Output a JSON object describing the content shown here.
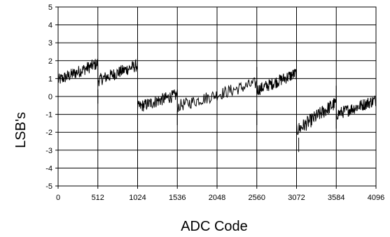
{
  "chart_data": {
    "type": "line",
    "title": "",
    "xlabel": "ADC Code",
    "ylabel": "LSB's",
    "xlim": [
      0,
      4096
    ],
    "ylim": [
      -5,
      5
    ],
    "grid": true,
    "legend": "none",
    "x_ticks": [
      0,
      512,
      1024,
      1536,
      2048,
      2560,
      3072,
      3584,
      4096
    ],
    "x_tick_labels": [
      "0",
      "512",
      "1024",
      "1536",
      "2048",
      "2560",
      "3072",
      "3584",
      "4096"
    ],
    "y_ticks": [
      5,
      4,
      3,
      2,
      1,
      0,
      -1,
      -2,
      -3,
      -4,
      -5
    ],
    "y_tick_labels": [
      "5",
      "4",
      "3",
      "2",
      "1",
      "0",
      "-1",
      "-2",
      "-3",
      "-4",
      "-5"
    ],
    "series": [
      {
        "color": "#000000",
        "segments": [
          {
            "x_start": 0,
            "x_end": 512,
            "y_start": 0.9,
            "y_end": 1.85,
            "noise": 0.35
          },
          {
            "x_start": 512,
            "x_end": 1024,
            "y_start": 0.9,
            "y_end": 1.75,
            "noise": 0.35
          },
          {
            "x_start": 1024,
            "x_end": 1536,
            "y_start": -0.6,
            "y_end": 0.1,
            "noise": 0.35
          },
          {
            "x_start": 1536,
            "x_end": 2560,
            "y_start": -0.55,
            "y_end": 0.75,
            "noise": 0.35
          },
          {
            "x_start": 2560,
            "x_end": 3072,
            "y_start": 0.35,
            "y_end": 1.3,
            "noise": 0.35
          },
          {
            "x_start": 3072,
            "x_end": 3584,
            "y_start": -1.9,
            "y_end": -0.35,
            "noise": 0.4
          },
          {
            "x_start": 3584,
            "x_end": 4096,
            "y_start": -1.0,
            "y_end": -0.2,
            "noise": 0.35
          }
        ],
        "spikes": [
          {
            "x": 512,
            "y": 0.4
          },
          {
            "x": 1024,
            "y": 1.9
          },
          {
            "x": 1536,
            "y": -1.6
          },
          {
            "x": 2560,
            "y": -1.6
          },
          {
            "x": 2560,
            "y": 1.65
          },
          {
            "x": 3072,
            "y": -0.6
          },
          {
            "x": 3100,
            "y": -3.1
          },
          {
            "x": 3584,
            "y": -1.8
          },
          {
            "x": 3584,
            "y": 0.6
          }
        ]
      }
    ]
  }
}
